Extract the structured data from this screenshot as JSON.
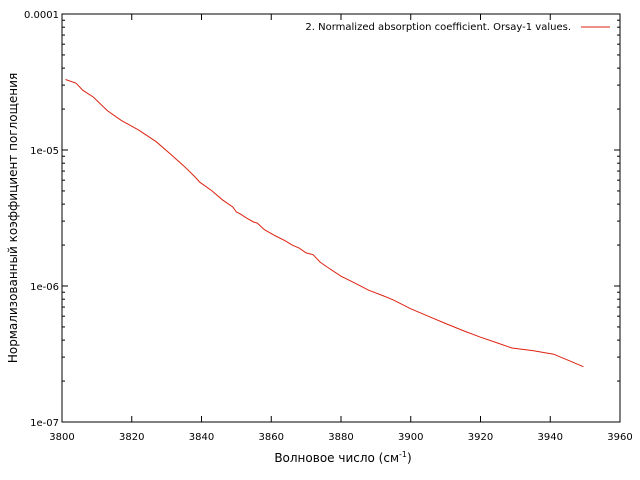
{
  "chart_data": {
    "type": "line",
    "xlabel": "Волновое число (см",
    "xlabel_sup": "-1",
    "xlabel_suffix": ")",
    "ylabel": "Нормализованный коэффициент поглощения",
    "xlim": [
      3800,
      3960
    ],
    "ylim": [
      1e-07,
      0.0001
    ],
    "yscale": "log",
    "grid": false,
    "legend_position": "top-right",
    "x_ticks": [
      "3800",
      "3820",
      "3840",
      "3860",
      "3880",
      "3900",
      "3920",
      "3940",
      "3960"
    ],
    "y_ticks": [
      "1e-07",
      "1e-06",
      "1e-05",
      "0.0001"
    ],
    "series": [
      {
        "name": "2. Normalized absorption coefficient. Orsay-1 values.",
        "color": "#dd2211",
        "x": [
          3801,
          3804,
          3806,
          3809,
          3813,
          3817,
          3822,
          3827,
          3831,
          3835,
          3838,
          3839.5,
          3843,
          3846,
          3849,
          3850,
          3851,
          3853,
          3855,
          3856,
          3858,
          3861,
          3864,
          3866,
          3868,
          3870,
          3872,
          3874,
          3876,
          3880,
          3884,
          3888,
          3892,
          3895,
          3900,
          3905,
          3910,
          3915,
          3920,
          3925,
          3929,
          3935,
          3941,
          3945,
          3949.5
        ],
        "y": [
          3.3e-05,
          3.1e-05,
          2.75e-05,
          2.45e-05,
          1.95e-05,
          1.65e-05,
          1.4e-05,
          1.15e-05,
          9.4e-06,
          7.6e-06,
          6.4e-06,
          5.8e-06,
          5e-06,
          4.3e-06,
          3.8e-06,
          3.5e-06,
          3.4e-06,
          3.15e-06,
          2.95e-06,
          2.9e-06,
          2.6e-06,
          2.35e-06,
          2.15e-06,
          2e-06,
          1.9e-06,
          1.75e-06,
          1.7e-06,
          1.5e-06,
          1.38e-06,
          1.18e-06,
          1.05e-06,
          9.3e-07,
          8.5e-07,
          7.9e-07,
          6.8e-07,
          6e-07,
          5.3e-07,
          4.7e-07,
          4.2e-07,
          3.8e-07,
          3.5e-07,
          3.35e-07,
          3.15e-07,
          2.85e-07,
          2.55e-07
        ]
      }
    ]
  }
}
